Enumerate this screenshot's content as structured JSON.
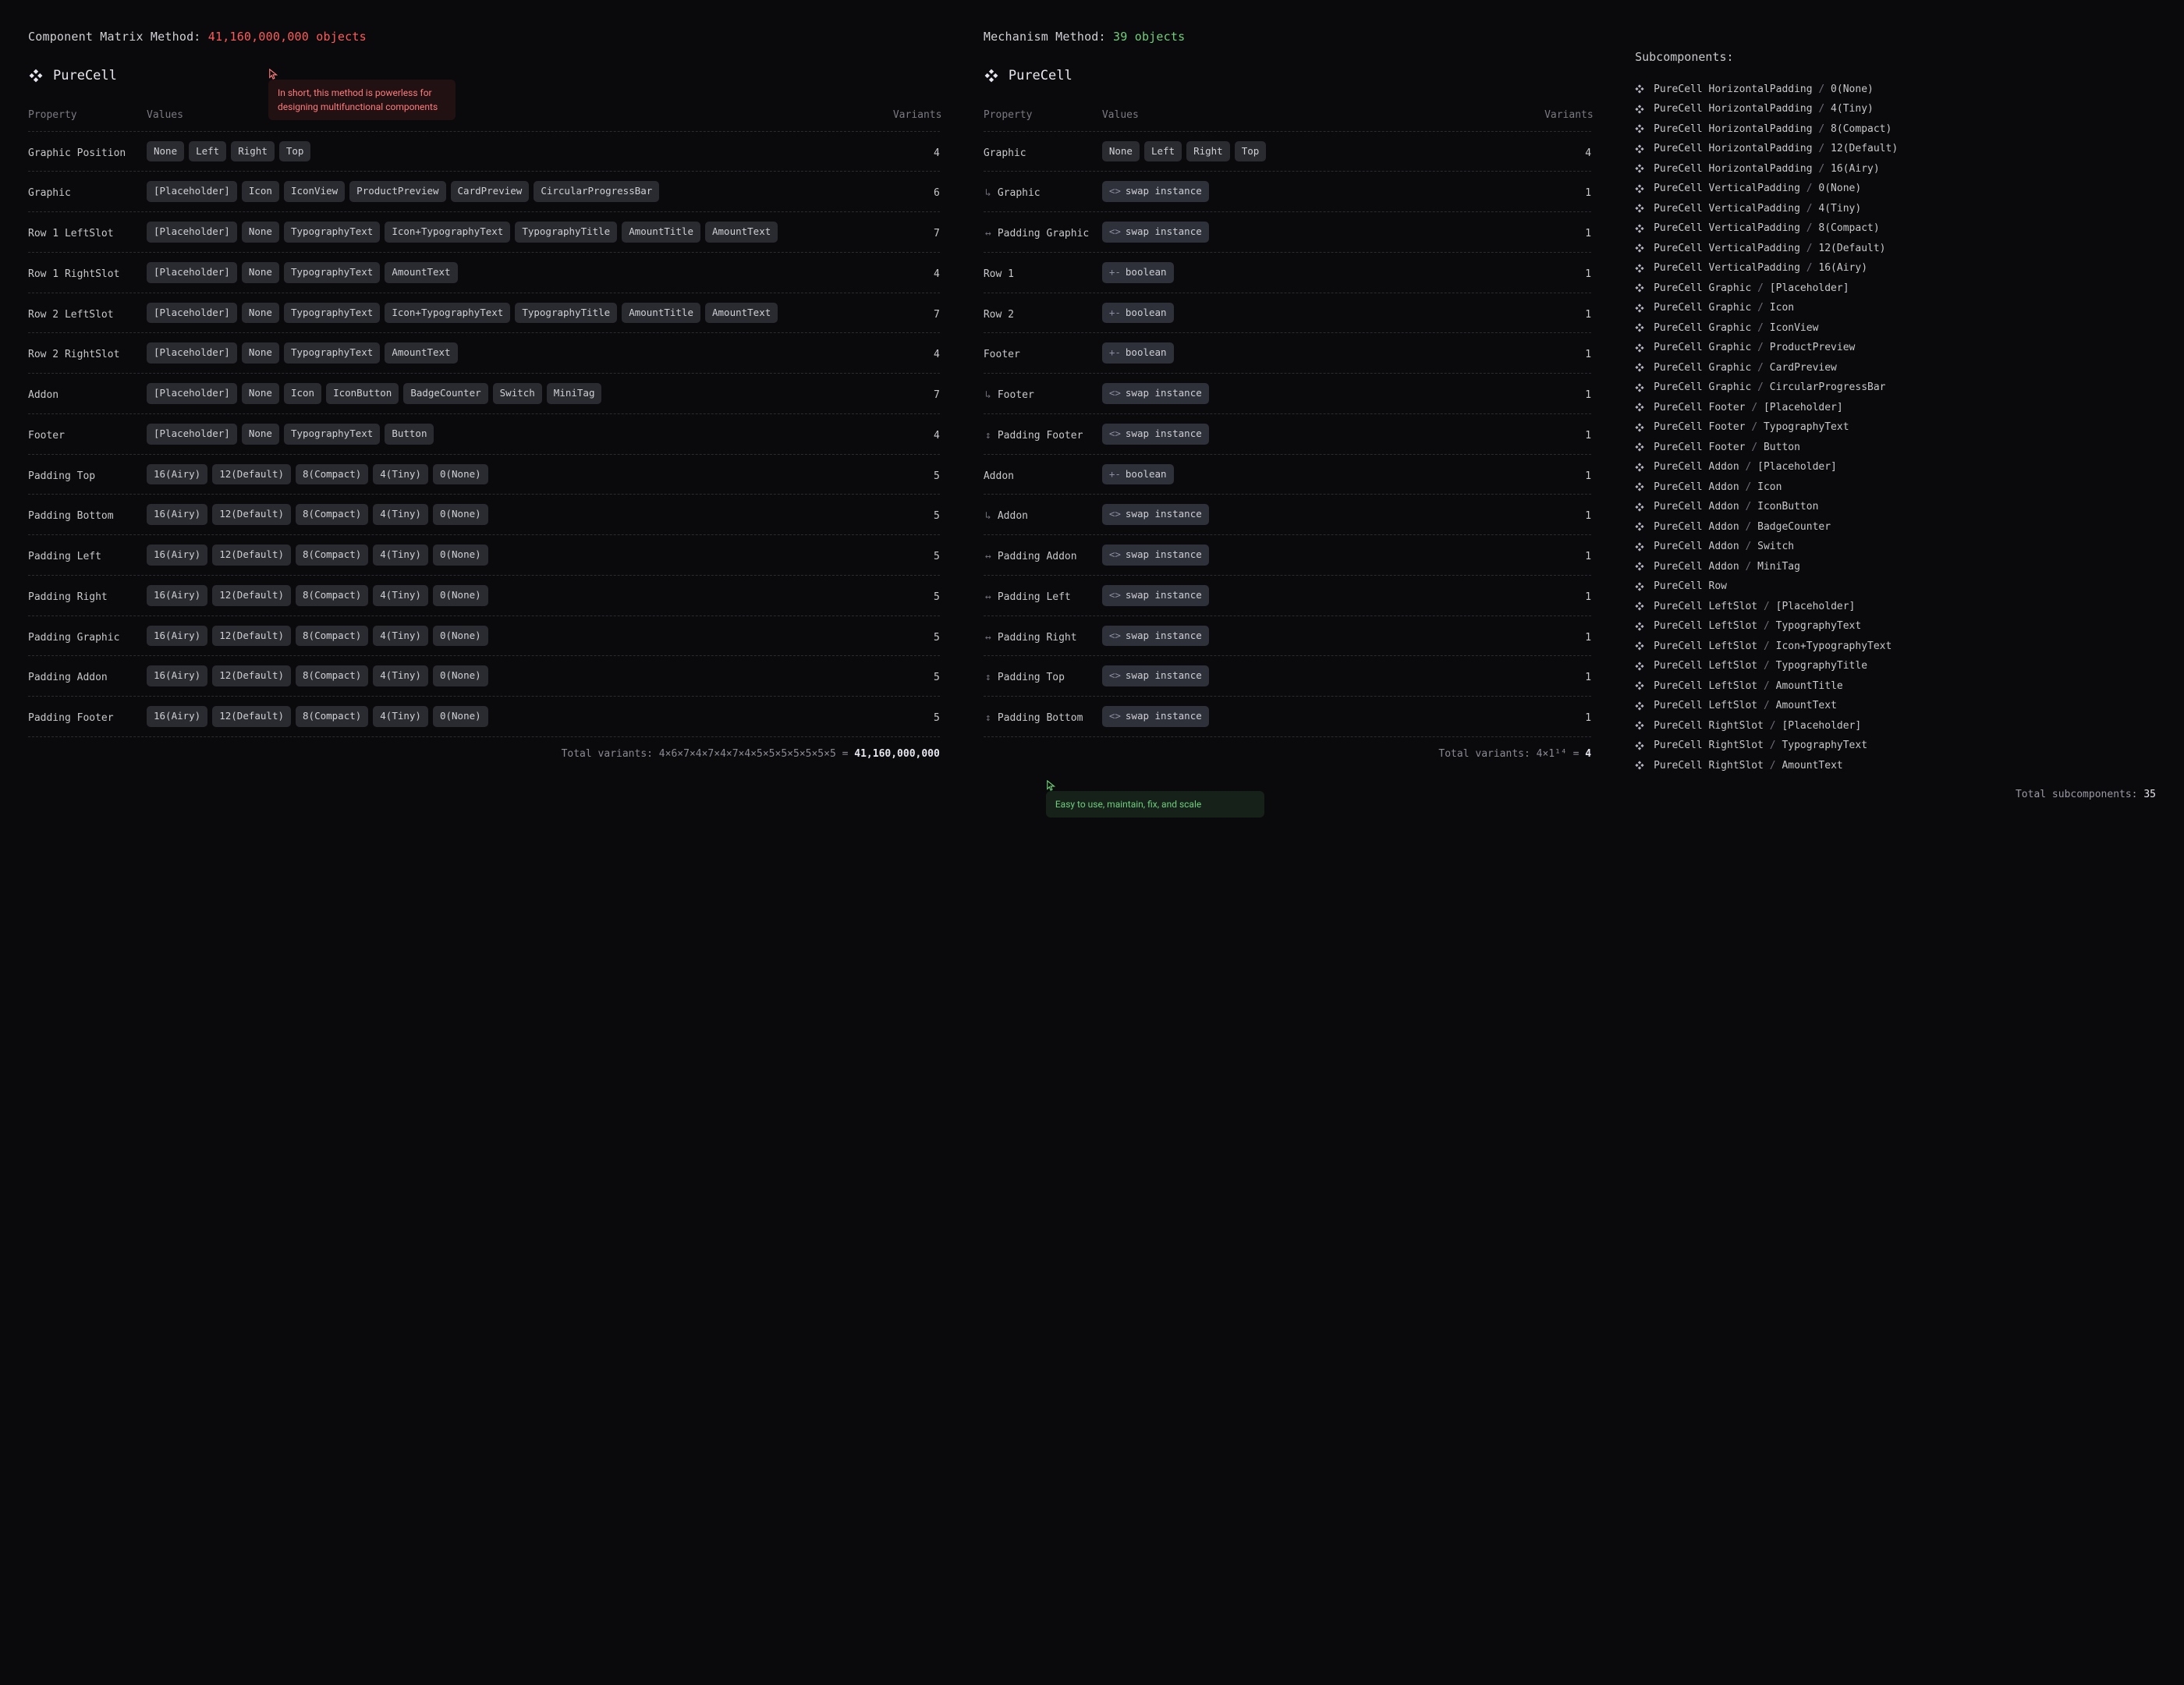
{
  "colors": {
    "bg": "#0a0a0c",
    "text": "#c8c8cc",
    "text_bright": "#e7e7ee",
    "muted": "#7a7a82",
    "chip_bg": "#2a2a31",
    "dash": "#2b2b32",
    "red": "#ff5a5a",
    "red_soft": "#ff7b7b",
    "green": "#6fcf7c"
  },
  "left": {
    "method_label": "Component Matrix Method:",
    "method_value": "41,160,000,000 objects",
    "annotation": "In short, this method is powerless for designing multifunctional components",
    "component_title": "PureCell",
    "columns": [
      "Property",
      "Values",
      "Variants"
    ],
    "rows": [
      {
        "property": "Graphic Position",
        "values": [
          "None",
          "Left",
          "Right",
          "Top"
        ],
        "variants": 4
      },
      {
        "property": "Graphic",
        "values": [
          "[Placeholder]",
          "Icon",
          "IconView",
          "ProductPreview",
          "CardPreview",
          "CircularProgressBar"
        ],
        "variants": 6
      },
      {
        "property": "Row 1 LeftSlot",
        "values": [
          "[Placeholder]",
          "None",
          "TypographyText",
          "Icon+TypographyText",
          "TypographyTitle",
          "AmountTitle",
          "AmountText"
        ],
        "variants": 7
      },
      {
        "property": "Row 1 RightSlot",
        "values": [
          "[Placeholder]",
          "None",
          "TypographyText",
          "AmountText"
        ],
        "variants": 4
      },
      {
        "property": "Row 2 LeftSlot",
        "values": [
          "[Placeholder]",
          "None",
          "TypographyText",
          "Icon+TypographyText",
          "TypographyTitle",
          "AmountTitle",
          "AmountText"
        ],
        "variants": 7
      },
      {
        "property": "Row 2 RightSlot",
        "values": [
          "[Placeholder]",
          "None",
          "TypographyText",
          "AmountText"
        ],
        "variants": 4
      },
      {
        "property": "Addon",
        "values": [
          "[Placeholder]",
          "None",
          "Icon",
          "IconButton",
          "BadgeCounter",
          "Switch",
          "MiniTag"
        ],
        "variants": 7
      },
      {
        "property": "Footer",
        "values": [
          "[Placeholder]",
          "None",
          "TypographyText",
          "Button"
        ],
        "variants": 4
      },
      {
        "property": "Padding Top",
        "values": [
          "16(Airy)",
          "12(Default)",
          "8(Compact)",
          "4(Tiny)",
          "0(None)"
        ],
        "variants": 5
      },
      {
        "property": "Padding Bottom",
        "values": [
          "16(Airy)",
          "12(Default)",
          "8(Compact)",
          "4(Tiny)",
          "0(None)"
        ],
        "variants": 5
      },
      {
        "property": "Padding Left",
        "values": [
          "16(Airy)",
          "12(Default)",
          "8(Compact)",
          "4(Tiny)",
          "0(None)"
        ],
        "variants": 5
      },
      {
        "property": "Padding Right",
        "values": [
          "16(Airy)",
          "12(Default)",
          "8(Compact)",
          "4(Tiny)",
          "0(None)"
        ],
        "variants": 5
      },
      {
        "property": "Padding Graphic",
        "values": [
          "16(Airy)",
          "12(Default)",
          "8(Compact)",
          "4(Tiny)",
          "0(None)"
        ],
        "variants": 5
      },
      {
        "property": "Padding Addon",
        "values": [
          "16(Airy)",
          "12(Default)",
          "8(Compact)",
          "4(Tiny)",
          "0(None)"
        ],
        "variants": 5
      },
      {
        "property": "Padding Footer",
        "values": [
          "16(Airy)",
          "12(Default)",
          "8(Compact)",
          "4(Tiny)",
          "0(None)"
        ],
        "variants": 5
      }
    ],
    "total_formula": "Total variants: 4×6×7×4×7×4×7×4×5×5×5×5×5×5×5 = ",
    "total_value": "41,160,000,000"
  },
  "mid": {
    "method_label": "Mechanism Method:",
    "method_value": "39 objects",
    "annotation": "Easy to use, maintain, fix, and scale",
    "component_title": "PureCell",
    "columns": [
      "Property",
      "Values",
      "Variants"
    ],
    "rows": [
      {
        "property": "Graphic",
        "icon": "",
        "values": [
          "None",
          "Left",
          "Right",
          "Top"
        ],
        "type": "chips",
        "variants": 4
      },
      {
        "property": "Graphic",
        "icon": "↳",
        "values": [
          "swap instance"
        ],
        "type": "swap",
        "variants": 1
      },
      {
        "property": "Padding Graphic",
        "icon": "↔",
        "values": [
          "swap instance"
        ],
        "type": "swap",
        "variants": 1
      },
      {
        "property": "Row 1",
        "icon": "",
        "values": [
          "boolean"
        ],
        "type": "bool",
        "variants": 1
      },
      {
        "property": "Row 2",
        "icon": "",
        "values": [
          "boolean"
        ],
        "type": "bool",
        "variants": 1
      },
      {
        "property": "Footer",
        "icon": "",
        "values": [
          "boolean"
        ],
        "type": "bool",
        "variants": 1
      },
      {
        "property": "Footer",
        "icon": "↳",
        "values": [
          "swap instance"
        ],
        "type": "swap",
        "variants": 1
      },
      {
        "property": "Padding Footer",
        "icon": "↕",
        "values": [
          "swap instance"
        ],
        "type": "swap",
        "variants": 1
      },
      {
        "property": "Addon",
        "icon": "",
        "values": [
          "boolean"
        ],
        "type": "bool",
        "variants": 1
      },
      {
        "property": "Addon",
        "icon": "↳",
        "values": [
          "swap instance"
        ],
        "type": "swap",
        "variants": 1
      },
      {
        "property": "Padding Addon",
        "icon": "↔",
        "values": [
          "swap instance"
        ],
        "type": "swap",
        "variants": 1
      },
      {
        "property": "Padding Left",
        "icon": "↔",
        "values": [
          "swap instance"
        ],
        "type": "swap",
        "variants": 1
      },
      {
        "property": "Padding Right",
        "icon": "↔",
        "values": [
          "swap instance"
        ],
        "type": "swap",
        "variants": 1
      },
      {
        "property": "Padding Top",
        "icon": "↕",
        "values": [
          "swap instance"
        ],
        "type": "swap",
        "variants": 1
      },
      {
        "property": "Padding Bottom",
        "icon": "↕",
        "values": [
          "swap instance"
        ],
        "type": "swap",
        "variants": 1
      }
    ],
    "total_formula": "Total variants: 4×1¹⁴ = ",
    "total_value": "4"
  },
  "right": {
    "title": "Subcomponents:",
    "items": [
      "PureCell HorizontalPadding / 0(None)",
      "PureCell HorizontalPadding / 4(Tiny)",
      "PureCell HorizontalPadding / 8(Compact)",
      "PureCell HorizontalPadding / 12(Default)",
      "PureCell HorizontalPadding / 16(Airy)",
      "PureCell VerticalPadding / 0(None)",
      "PureCell VerticalPadding / 4(Tiny)",
      "PureCell VerticalPadding / 8(Compact)",
      "PureCell VerticalPadding / 12(Default)",
      "PureCell VerticalPadding / 16(Airy)",
      "PureCell Graphic / [Placeholder]",
      "PureCell Graphic / Icon",
      "PureCell Graphic / IconView",
      "PureCell Graphic / ProductPreview",
      "PureCell Graphic / CardPreview",
      "PureCell Graphic / CircularProgressBar",
      "PureCell Footer / [Placeholder]",
      "PureCell Footer / TypographyText",
      "PureCell Footer / Button",
      "PureCell Addon / [Placeholder]",
      "PureCell Addon / Icon",
      "PureCell Addon / IconButton",
      "PureCell Addon / BadgeCounter",
      "PureCell Addon / Switch",
      "PureCell Addon / MiniTag",
      "PureCell Row",
      "PureCell LeftSlot / [Placeholder]",
      "PureCell LeftSlot / TypographyText",
      "PureCell LeftSlot / Icon+TypographyText",
      "PureCell LeftSlot / TypographyTitle",
      "PureCell LeftSlot / AmountTitle",
      "PureCell LeftSlot / AmountText",
      "PureCell RightSlot / [Placeholder]",
      "PureCell RightSlot / TypographyText",
      "PureCell RightSlot / AmountText"
    ],
    "total_label": "Total subcomponents:",
    "total_value": "35"
  }
}
